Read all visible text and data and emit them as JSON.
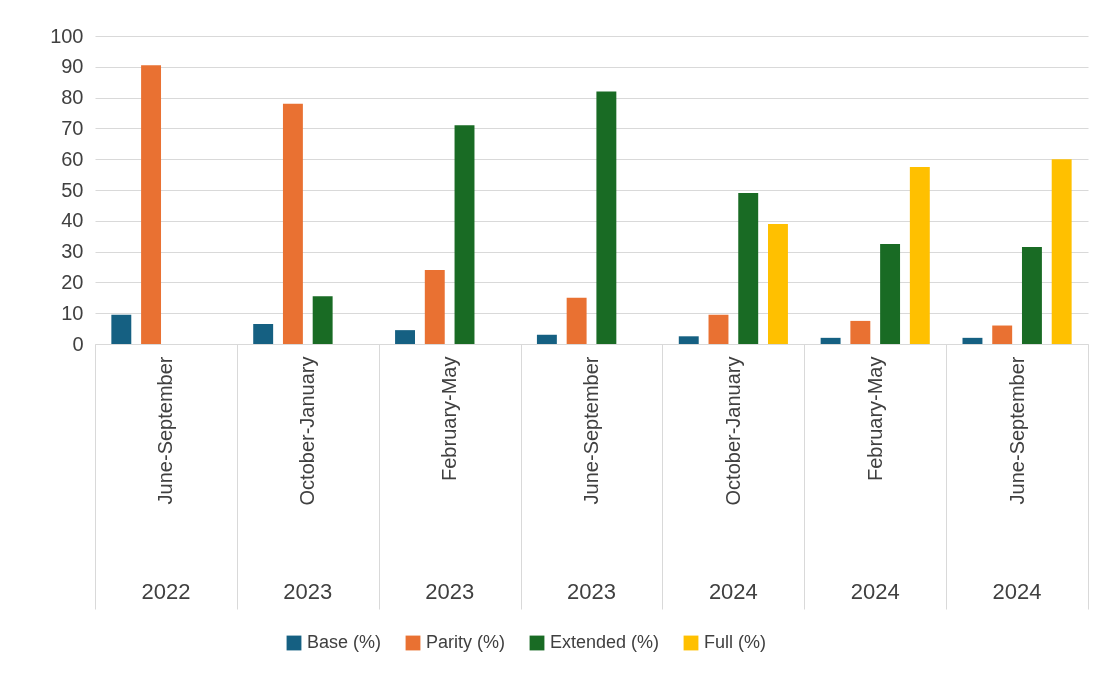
{
  "chart_data": {
    "type": "bar",
    "categories": [
      "June-September\n2022",
      "October-January\n2023",
      "February-May\n2023",
      "June-September\n2023",
      "October-January\n2024",
      "February-May\n2024",
      "June-September\n2024"
    ],
    "series": [
      {
        "name": "Base (%)",
        "color": "#156082",
        "values": [
          9.5,
          6.5,
          4.5,
          3,
          2.5,
          2,
          2
        ]
      },
      {
        "name": "Parity (%)",
        "color": "#e97132",
        "values": [
          90.5,
          78,
          24,
          15,
          9.5,
          7.5,
          6
        ]
      },
      {
        "name": "Extended (%)",
        "color": "#196b24",
        "values": [
          null,
          15.5,
          71,
          82,
          49,
          32.5,
          31.5
        ]
      },
      {
        "name": "Full (%)",
        "color": "#ffc000",
        "values": [
          null,
          null,
          null,
          null,
          39,
          57.5,
          60
        ]
      }
    ],
    "ylim": [
      0,
      100
    ],
    "yticks": [
      0,
      10,
      20,
      30,
      40,
      50,
      60,
      70,
      80,
      90,
      100
    ],
    "grid": "y",
    "legend": "bottom"
  }
}
